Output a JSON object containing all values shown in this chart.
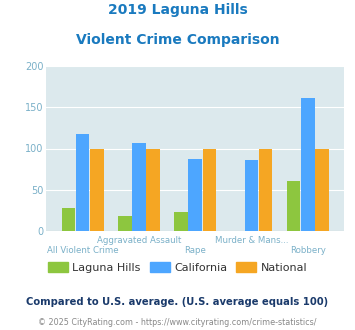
{
  "title_line1": "2019 Laguna Hills",
  "title_line2": "Violent Crime Comparison",
  "categories": [
    "All Violent Crime",
    "Aggravated Assault",
    "Rape",
    "Murder & Mans...",
    "Robbery"
  ],
  "cat_labels_top": [
    "Aggravated Assault",
    "Murder & Mans..."
  ],
  "cat_labels_bottom": [
    "All Violent Crime",
    "Rape",
    "Robbery"
  ],
  "laguna_hills": [
    28,
    18,
    23,
    0,
    61
  ],
  "california": [
    117,
    107,
    87,
    86,
    161
  ],
  "national": [
    100,
    100,
    100,
    100,
    100
  ],
  "color_laguna": "#8dc63f",
  "color_california": "#4da6ff",
  "color_national": "#f5a623",
  "ylim": [
    0,
    200
  ],
  "yticks": [
    0,
    50,
    100,
    150,
    200
  ],
  "bg_color": "#dce9ed",
  "title_color": "#1a7abf",
  "axis_label_color": "#7ab0c8",
  "legend_labels": [
    "Laguna Hills",
    "California",
    "National"
  ],
  "legend_text_color": "#333333",
  "footnote1": "Compared to U.S. average. (U.S. average equals 100)",
  "footnote2": "© 2025 CityRating.com - https://www.cityrating.com/crime-statistics/",
  "footnote1_color": "#1a3a6b",
  "footnote2_color": "#888888",
  "footnote2_url_color": "#4da6ff"
}
